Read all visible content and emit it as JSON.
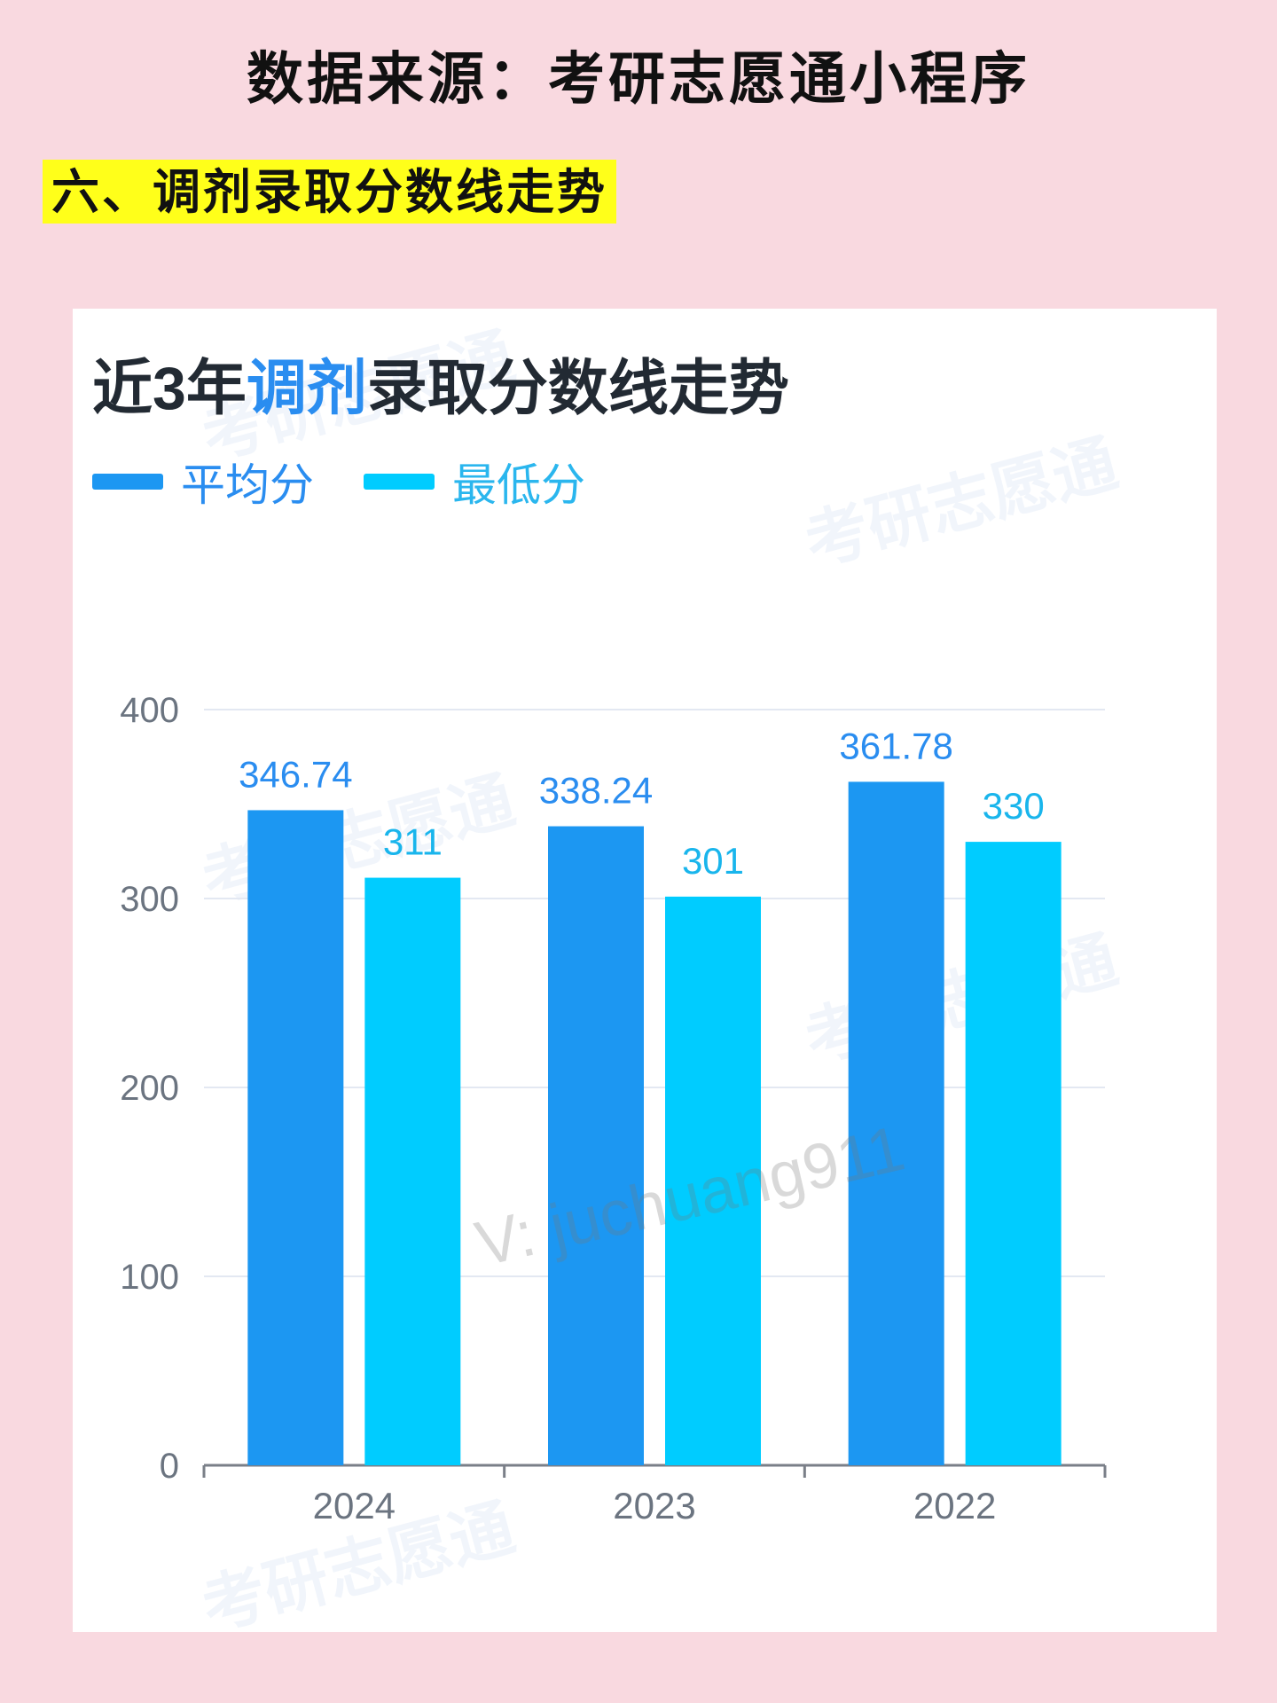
{
  "header": {
    "title": "数据来源：考研志愿通小程序"
  },
  "section": {
    "heading": "六、调剂录取分数线走势"
  },
  "card": {
    "title_part1": "近3年",
    "title_highlight": "调剂",
    "title_part2": "录取分数线走势",
    "watermark_text": "考研志愿通",
    "overlay_watermark": "V: juchuang911"
  },
  "colors": {
    "avg": "#1c97f2",
    "min": "#00ccff",
    "title_highlight": "#2a8df0",
    "page_bg": "#f9d9e0",
    "heading_bg": "#ffff1a"
  },
  "chart_data": {
    "type": "bar",
    "title": "近3年调剂录取分数线走势",
    "categories": [
      "2024",
      "2023",
      "2022"
    ],
    "series": [
      {
        "name": "平均分",
        "values": [
          346.74,
          338.24,
          361.78
        ],
        "labels": [
          "346.74",
          "338.24",
          "361.78"
        ],
        "color": "#1c97f2"
      },
      {
        "name": "最低分",
        "values": [
          311,
          301,
          330
        ],
        "labels": [
          "311",
          "301",
          "330"
        ],
        "color": "#00ccff"
      }
    ],
    "yticks": [
      "0",
      "100",
      "200",
      "300",
      "400"
    ],
    "ylim": [
      0,
      400
    ],
    "grid": true,
    "legend": "top-left",
    "xlabel": "",
    "ylabel": ""
  }
}
